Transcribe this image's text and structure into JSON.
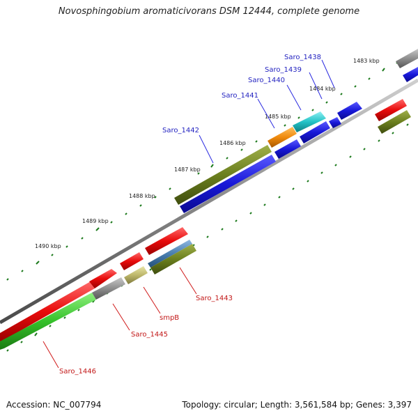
{
  "title": "Novosphingobium aromaticivorans DSM 12444, complete genome",
  "footer": {
    "accession": "Accession: NC_007794",
    "summary": "Topology: circular; Length: 3,561,584 bp; Genes: 3,397"
  },
  "kbp_labels": [
    "1483 kbp",
    "1484 kbp",
    "1485 kbp",
    "1486 kbp",
    "1487 kbp",
    "1488 kbp",
    "1489 kbp",
    "1490 kbp"
  ],
  "genes_forward": [
    "Saro_1438",
    "Saro_1439",
    "Saro_1440",
    "Saro_1441",
    "Saro_1442"
  ],
  "genes_reverse": [
    "Saro_1443",
    "smpB",
    "Saro_1445",
    "Saro_1446"
  ],
  "colors": {
    "blue": "#1a1ad6",
    "red": "#e60b0b",
    "olive": "#6b7f1e",
    "orange": "#f08a0c",
    "cyan": "#22c2c6",
    "green": "#35c12a",
    "gray": "#8e8e8e",
    "khaki": "#bdb76b",
    "steelblue": "#4a7fb0",
    "tick": "#1c7a1c"
  }
}
